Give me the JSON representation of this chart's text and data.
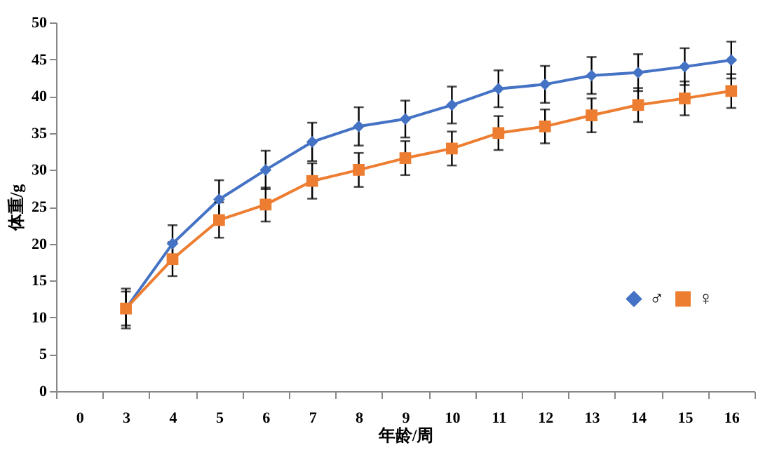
{
  "chart_data": {
    "type": "line",
    "xlabel": "年龄/周",
    "ylabel": "体重/g",
    "categories": [
      "0",
      "3",
      "4",
      "5",
      "6",
      "7",
      "8",
      "9",
      "10",
      "11",
      "12",
      "13",
      "14",
      "15",
      "16"
    ],
    "series": [
      {
        "name": "♂",
        "color": "#4472c4",
        "marker": "diamond",
        "values": [
          null,
          11.2,
          20,
          26,
          30,
          33.8,
          35.9,
          36.9,
          38.8,
          41,
          41.6,
          42.8,
          43.2,
          44,
          44.9
        ],
        "errors": [
          null,
          2.7,
          2.5,
          2.6,
          2.6,
          2.6,
          2.6,
          2.5,
          2.5,
          2.5,
          2.5,
          2.5,
          2.5,
          2.5,
          2.5
        ]
      },
      {
        "name": "♀",
        "color": "#ed7d31",
        "marker": "square",
        "values": [
          null,
          11.2,
          17.9,
          23.2,
          25.3,
          28.5,
          30,
          31.6,
          32.9,
          35,
          35.9,
          37.4,
          38.8,
          39.7,
          40.7
        ],
        "errors": [
          null,
          2.3,
          2.3,
          2.4,
          2.3,
          2.4,
          2.3,
          2.3,
          2.3,
          2.3,
          2.3,
          2.3,
          2.3,
          2.3,
          2.3
        ]
      }
    ],
    "ylim": [
      0,
      50
    ],
    "yticks": [
      0,
      5,
      10,
      15,
      20,
      25,
      30,
      35,
      40,
      45,
      50
    ],
    "grid": false,
    "legend": "right",
    "line_style": "solid"
  }
}
